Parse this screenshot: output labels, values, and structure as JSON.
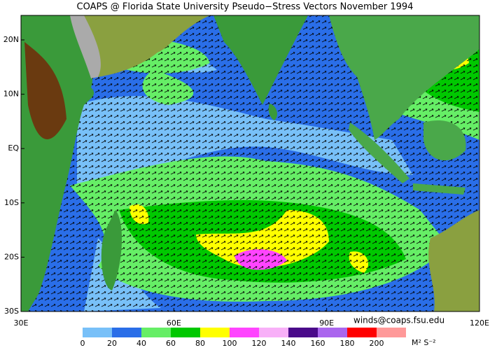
{
  "header": {
    "title": "COAPS @ Florida State University Pseudo−Stress Vectors  November 1994"
  },
  "map": {
    "lon_ticks": [
      {
        "value": 30,
        "label": "30E"
      },
      {
        "value": 60,
        "label": "60E"
      },
      {
        "value": 90,
        "label": "90E"
      },
      {
        "value": 120,
        "label": "120E"
      }
    ],
    "lat_ticks": [
      {
        "value": 20,
        "label": "20N"
      },
      {
        "value": 10,
        "label": "10N"
      },
      {
        "value": 0,
        "label": "EQ"
      },
      {
        "value": -10,
        "label": "10S"
      },
      {
        "value": -20,
        "label": "20S"
      },
      {
        "value": -30,
        "label": "30S"
      }
    ]
  },
  "credit": "winds@coaps.fsu.edu",
  "colorbar": {
    "labels": [
      0,
      20,
      40,
      60,
      80,
      100,
      120,
      140,
      160,
      180,
      200
    ],
    "colors": [
      "#78c0f8",
      "#2a6ee8",
      "#66ee66",
      "#00c800",
      "#ffff00",
      "#ff44ff",
      "#f8b0f8",
      "#4a0a8a",
      "#aa66ee",
      "#ff0000",
      "#ff9999"
    ],
    "unit": "M² S⁻²"
  }
}
